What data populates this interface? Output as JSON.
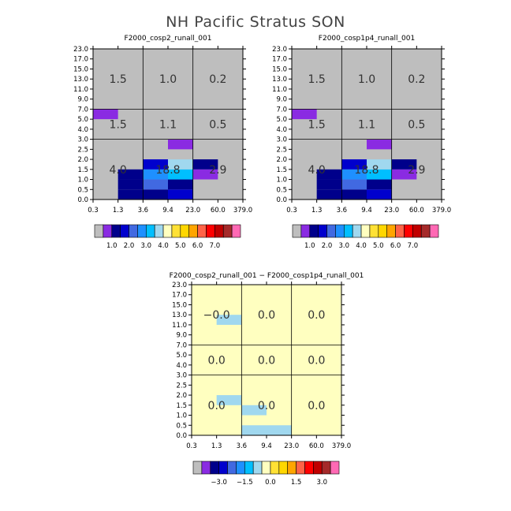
{
  "title": "NH Pacific Stratus SON",
  "colors": {
    "missing": "#bebebe",
    "diff_background": "#ffffc0",
    "grid_line": "#000000"
  },
  "palette": [
    "#bebebe",
    "#8a2be2",
    "#00008b",
    "#0000cd",
    "#4169e1",
    "#1e90ff",
    "#00bfff",
    "#a0d8ef",
    "#ffffc0",
    "#ffe135",
    "#ffd700",
    "#ffa500",
    "#ff6347",
    "#ff0000",
    "#c00000",
    "#a52a2a",
    "#ff69b4"
  ],
  "chart_data": [
    {
      "type": "heatmap",
      "title": "F2000_cosp2_runall_001",
      "x_ticks": [
        "0.3",
        "1.3",
        "3.6",
        "9.4",
        "23.0",
        "60.0",
        "379.0"
      ],
      "y_ticks": [
        "0.0",
        "0.5",
        "1.0",
        "1.5",
        "2.0",
        "2.5",
        "3.0",
        "4.0",
        "5.0",
        "7.0",
        "9.0",
        "11.0",
        "13.0",
        "15.0",
        "17.0",
        "23.0"
      ],
      "background": "#bebebe",
      "cells": [
        {
          "x": 1,
          "y": 0,
          "color": "#00008b"
        },
        {
          "x": 1,
          "y": 1,
          "color": "#00008b"
        },
        {
          "x": 1,
          "y": 2,
          "color": "#00008b"
        },
        {
          "x": 2,
          "y": 0,
          "color": "#00008b"
        },
        {
          "x": 2,
          "y": 1,
          "color": "#4169e1"
        },
        {
          "x": 2,
          "y": 2,
          "color": "#1e90ff"
        },
        {
          "x": 2,
          "y": 3,
          "color": "#0000cd"
        },
        {
          "x": 3,
          "y": 0,
          "color": "#0000cd"
        },
        {
          "x": 3,
          "y": 1,
          "color": "#00008b"
        },
        {
          "x": 3,
          "y": 2,
          "color": "#00bfff"
        },
        {
          "x": 3,
          "y": 3,
          "color": "#a0d8ef"
        },
        {
          "x": 3,
          "y": 5,
          "color": "#8a2be2"
        },
        {
          "x": 4,
          "y": 2,
          "color": "#8a2be2"
        },
        {
          "x": 4,
          "y": 3,
          "color": "#00008b"
        },
        {
          "x": 0,
          "y": 8,
          "color": "#8a2be2"
        }
      ],
      "region_values": [
        {
          "xr": [
            0,
            2
          ],
          "yr": [
            0,
            6
          ],
          "value": "4.0"
        },
        {
          "xr": [
            2,
            4
          ],
          "yr": [
            0,
            6
          ],
          "value": "18.8"
        },
        {
          "xr": [
            4,
            6
          ],
          "yr": [
            0,
            6
          ],
          "value": "2.9"
        },
        {
          "xr": [
            0,
            2
          ],
          "yr": [
            6,
            9
          ],
          "value": "1.5"
        },
        {
          "xr": [
            2,
            4
          ],
          "yr": [
            6,
            9
          ],
          "value": "1.1"
        },
        {
          "xr": [
            4,
            6
          ],
          "yr": [
            6,
            9
          ],
          "value": "0.5"
        },
        {
          "xr": [
            0,
            2
          ],
          "yr": [
            9,
            15
          ],
          "value": "1.5"
        },
        {
          "xr": [
            2,
            4
          ],
          "yr": [
            9,
            15
          ],
          "value": "1.0"
        },
        {
          "xr": [
            4,
            6
          ],
          "yr": [
            9,
            15
          ],
          "value": "0.2"
        }
      ],
      "colorbar_labels": [
        "1.0",
        "2.0",
        "3.0",
        "4.0",
        "5.0",
        "6.0",
        "7.0"
      ]
    },
    {
      "type": "heatmap",
      "title": "F2000_cosp1p4_runall_001",
      "x_ticks": [
        "0.3",
        "1.3",
        "3.6",
        "9.4",
        "23.0",
        "60.0",
        "379.0"
      ],
      "y_ticks": [
        "0.0",
        "0.5",
        "1.0",
        "1.5",
        "2.0",
        "2.5",
        "3.0",
        "4.0",
        "5.0",
        "7.0",
        "9.0",
        "11.0",
        "13.0",
        "15.0",
        "17.0",
        "23.0"
      ],
      "background": "#bebebe",
      "cells": [
        {
          "x": 1,
          "y": 0,
          "color": "#00008b"
        },
        {
          "x": 1,
          "y": 1,
          "color": "#00008b"
        },
        {
          "x": 1,
          "y": 2,
          "color": "#00008b"
        },
        {
          "x": 2,
          "y": 0,
          "color": "#00008b"
        },
        {
          "x": 2,
          "y": 1,
          "color": "#4169e1"
        },
        {
          "x": 2,
          "y": 2,
          "color": "#1e90ff"
        },
        {
          "x": 2,
          "y": 3,
          "color": "#0000cd"
        },
        {
          "x": 3,
          "y": 0,
          "color": "#0000cd"
        },
        {
          "x": 3,
          "y": 1,
          "color": "#00008b"
        },
        {
          "x": 3,
          "y": 2,
          "color": "#00bfff"
        },
        {
          "x": 3,
          "y": 3,
          "color": "#a0d8ef"
        },
        {
          "x": 3,
          "y": 5,
          "color": "#8a2be2"
        },
        {
          "x": 4,
          "y": 2,
          "color": "#8a2be2"
        },
        {
          "x": 4,
          "y": 3,
          "color": "#00008b"
        },
        {
          "x": 0,
          "y": 8,
          "color": "#8a2be2"
        }
      ],
      "region_values": [
        {
          "xr": [
            0,
            2
          ],
          "yr": [
            0,
            6
          ],
          "value": "4.0"
        },
        {
          "xr": [
            2,
            4
          ],
          "yr": [
            0,
            6
          ],
          "value": "18.8"
        },
        {
          "xr": [
            4,
            6
          ],
          "yr": [
            0,
            6
          ],
          "value": "2.9"
        },
        {
          "xr": [
            0,
            2
          ],
          "yr": [
            6,
            9
          ],
          "value": "1.5"
        },
        {
          "xr": [
            2,
            4
          ],
          "yr": [
            6,
            9
          ],
          "value": "1.1"
        },
        {
          "xr": [
            4,
            6
          ],
          "yr": [
            6,
            9
          ],
          "value": "0.5"
        },
        {
          "xr": [
            0,
            2
          ],
          "yr": [
            9,
            15
          ],
          "value": "1.5"
        },
        {
          "xr": [
            2,
            4
          ],
          "yr": [
            9,
            15
          ],
          "value": "1.0"
        },
        {
          "xr": [
            4,
            6
          ],
          "yr": [
            9,
            15
          ],
          "value": "0.2"
        }
      ],
      "colorbar_labels": [
        "1.0",
        "2.0",
        "3.0",
        "4.0",
        "5.0",
        "6.0",
        "7.0"
      ]
    },
    {
      "type": "heatmap",
      "title": "F2000_cosp2_runall_001 − F2000_cosp1p4_runall_001",
      "x_ticks": [
        "0.3",
        "1.3",
        "3.6",
        "9.4",
        "23.0",
        "60.0",
        "379.0"
      ],
      "y_ticks": [
        "0.0",
        "0.5",
        "1.0",
        "1.5",
        "2.0",
        "2.5",
        "3.0",
        "4.0",
        "5.0",
        "7.0",
        "9.0",
        "11.0",
        "13.0",
        "15.0",
        "17.0",
        "23.0"
      ],
      "background": "#ffffc0",
      "cells": [
        {
          "x": 1,
          "y": 11,
          "color": "#a0d8ef"
        },
        {
          "x": 1,
          "y": 3,
          "color": "#a0d8ef"
        },
        {
          "x": 2,
          "y": 2,
          "color": "#a0d8ef"
        },
        {
          "x": 2,
          "y": 0,
          "color": "#a0d8ef"
        },
        {
          "x": 3,
          "y": 0,
          "color": "#a0d8ef"
        }
      ],
      "region_values": [
        {
          "xr": [
            0,
            2
          ],
          "yr": [
            0,
            6
          ],
          "value": "0.0"
        },
        {
          "xr": [
            2,
            4
          ],
          "yr": [
            0,
            6
          ],
          "value": "0.0"
        },
        {
          "xr": [
            4,
            6
          ],
          "yr": [
            0,
            6
          ],
          "value": "0.0"
        },
        {
          "xr": [
            0,
            2
          ],
          "yr": [
            6,
            9
          ],
          "value": "0.0"
        },
        {
          "xr": [
            2,
            4
          ],
          "yr": [
            6,
            9
          ],
          "value": "0.0"
        },
        {
          "xr": [
            4,
            6
          ],
          "yr": [
            6,
            9
          ],
          "value": "0.0"
        },
        {
          "xr": [
            0,
            2
          ],
          "yr": [
            9,
            15
          ],
          "value": "−0.0"
        },
        {
          "xr": [
            2,
            4
          ],
          "yr": [
            9,
            15
          ],
          "value": "0.0"
        },
        {
          "xr": [
            4,
            6
          ],
          "yr": [
            9,
            15
          ],
          "value": "0.0"
        }
      ],
      "colorbar_labels": [
        "−3.0",
        "−1.5",
        "0.0",
        "1.5",
        "3.0"
      ]
    }
  ]
}
